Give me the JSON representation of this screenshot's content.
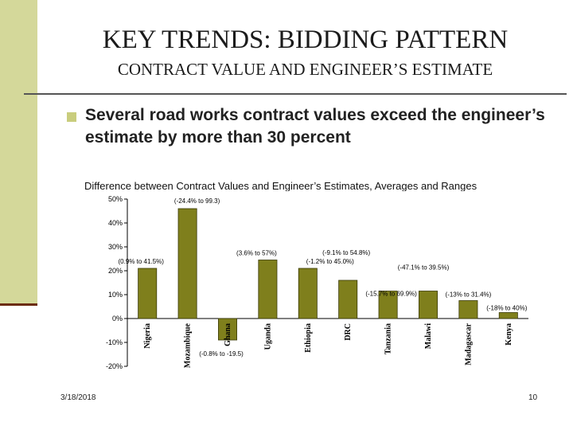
{
  "slide": {
    "title": "KEY TRENDS: BIDDING PATTERN",
    "subtitle": "CONTRACT VALUE  AND ENGINEER’S ESTIMATE",
    "bullet": "Several road works contract values exceed the engineer’s estimate by more than 30 percent",
    "date": "3/18/2018",
    "page_number": "10"
  },
  "colors": {
    "side_band": "#d4d89a",
    "bar_fill": "#7f7f1c",
    "bar_stroke": "#3a3a08",
    "bullet": "#c9cd7d"
  },
  "chart_data": {
    "type": "bar",
    "title": "Difference between Contract Values and Engineer’s Estimates, Averages and Ranges",
    "categories": [
      "Nigeria",
      "Mozambique",
      "Ghana",
      "Uganda",
      "Ethiopia",
      "DRC",
      "Tanzania",
      "Malawi",
      "Madagascar",
      "Kenya"
    ],
    "values": [
      21,
      46,
      -9,
      24.5,
      21,
      16,
      11.5,
      11.5,
      7.5,
      2.5
    ],
    "range_labels": [
      "(0.9% to 41.5%)",
      "(-24.4% to 99.3)",
      "(-0.8% to -19.5)",
      "(3.6% to 57%)",
      "(-1.2% to 45.0%)",
      "(-9.1% to 54.8%)",
      "(-15.7% to 69.9%)",
      "(-47.1% to 39.5%)",
      "(-13% to 31.4%)",
      "(-18% to 40%)"
    ],
    "y_ticks": [
      "50%",
      "40%",
      "30%",
      "20%",
      "10%",
      "0%",
      "-10%",
      "-20%"
    ],
    "ylim": [
      -20,
      50
    ],
    "grid": false,
    "legend": "none"
  }
}
